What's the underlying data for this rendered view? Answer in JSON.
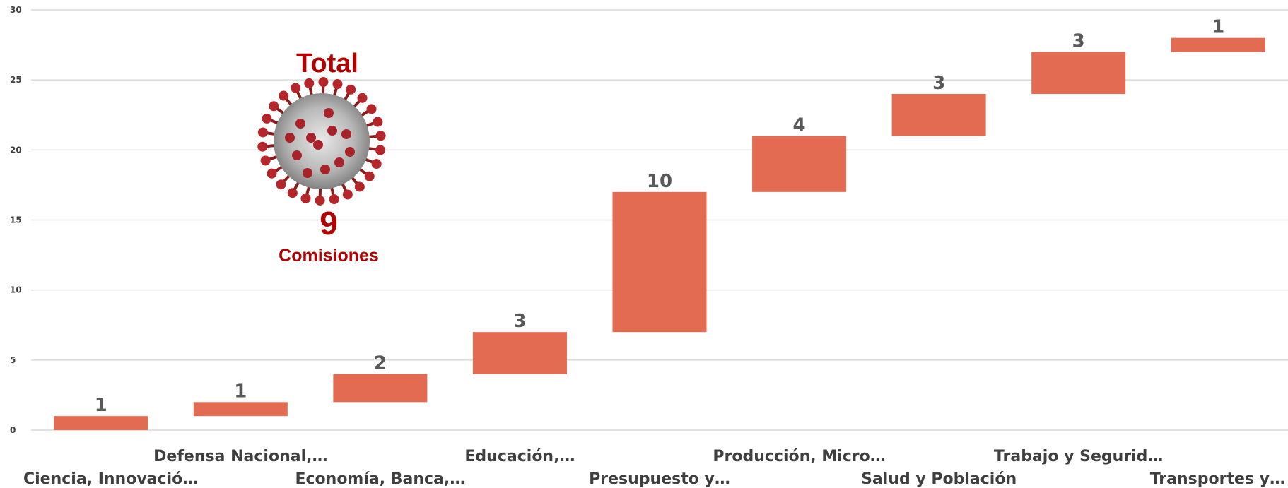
{
  "chart_data": {
    "type": "bar",
    "subtype": "waterfall",
    "categories": [
      "Ciencia, Innovació…",
      "Defensa Nacional,…",
      "Economía, Banca,…",
      "Educación,…",
      "Presupuesto y…",
      "Producción, Micro…",
      "Salud y Población",
      "Trabajo y Segurid…",
      "Transportes y…"
    ],
    "values": [
      1,
      1,
      2,
      3,
      10,
      4,
      3,
      3,
      1
    ],
    "data_labels": [
      "1",
      "1",
      "2",
      "3",
      "10",
      "4",
      "3",
      "3",
      "1"
    ],
    "ylim": [
      0,
      30
    ],
    "yticks": [
      "0",
      "5",
      "10",
      "15",
      "20",
      "25",
      "30"
    ],
    "grid": true,
    "bar_color": "#e36b52",
    "title": "",
    "xlabel": "",
    "ylabel": ""
  },
  "overlay": {
    "heading": "Total",
    "count": "9",
    "caption": "Comisiones",
    "image": "coronavirus-image",
    "text_color": "#b00000"
  }
}
